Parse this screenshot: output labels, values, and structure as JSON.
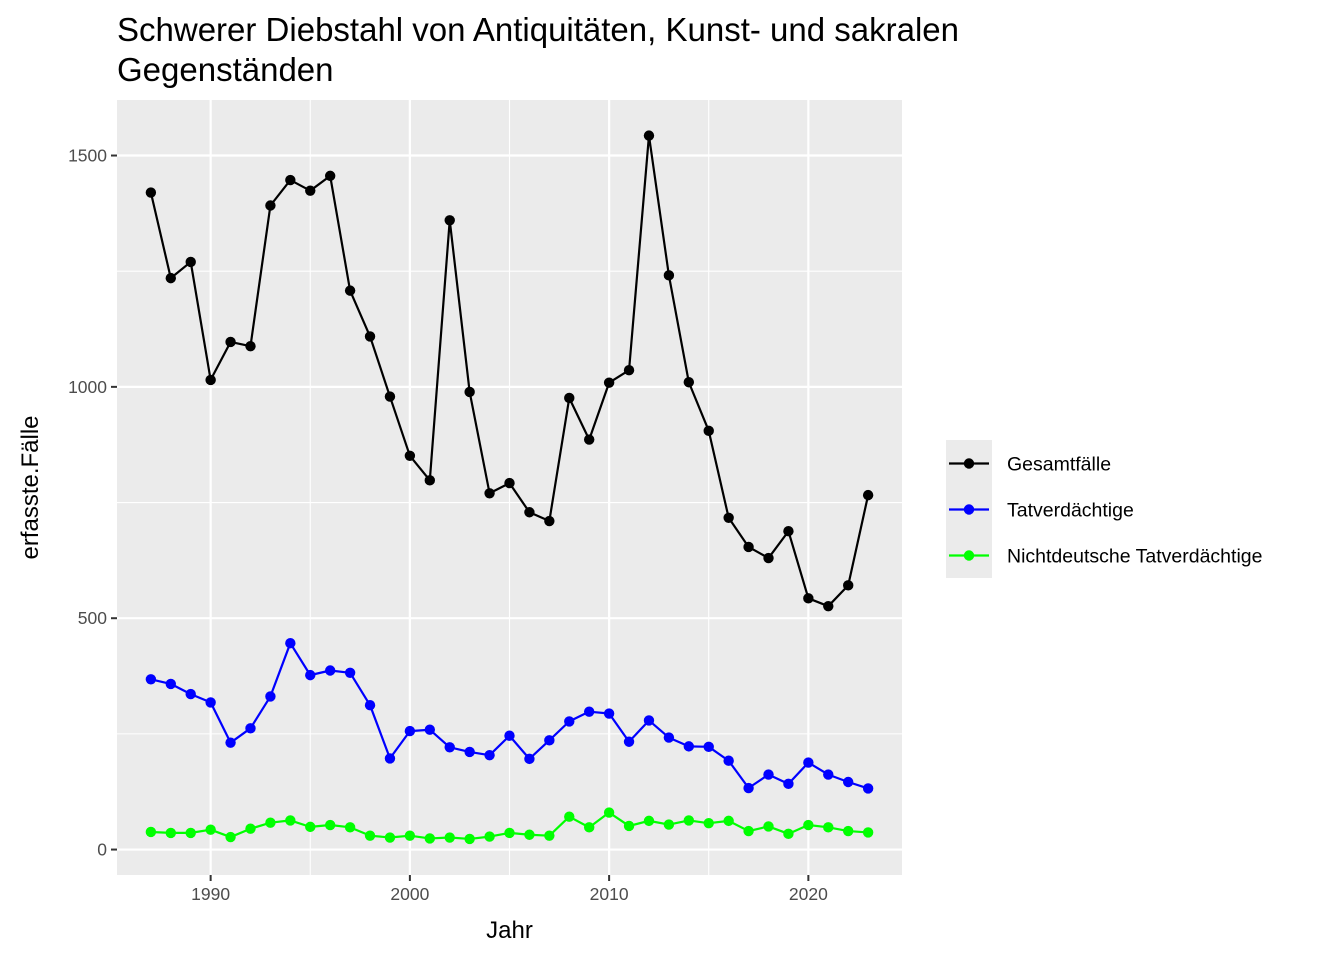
{
  "chart_data": {
    "type": "line",
    "title_line1": "Schwerer Diebstahl von Antiquitäten, Kunst- und sakralen",
    "title_line2": "Gegenständen",
    "xlabel": "Jahr",
    "ylabel": "erfasste.Fälle",
    "xlim": [
      1985.3,
      2024.7
    ],
    "ylim": [
      -55,
      1620
    ],
    "x_ticks": [
      1990,
      2000,
      2010,
      2020
    ],
    "y_ticks": [
      0,
      500,
      1000,
      1500
    ],
    "grid": true,
    "legend_position": "right",
    "x": [
      1987,
      1988,
      1989,
      1990,
      1991,
      1992,
      1993,
      1994,
      1995,
      1996,
      1997,
      1998,
      1999,
      2000,
      2001,
      2002,
      2003,
      2004,
      2005,
      2006,
      2007,
      2008,
      2009,
      2010,
      2011,
      2012,
      2013,
      2014,
      2015,
      2016,
      2017,
      2018,
      2019,
      2020,
      2021,
      2022,
      2023
    ],
    "series": [
      {
        "name": "Gesamtfälle",
        "color": "#000000",
        "values": [
          1420,
          1235,
          1270,
          1015,
          1097,
          1088,
          1392,
          1447,
          1424,
          1456,
          1208,
          1109,
          979,
          851,
          798,
          1360,
          989,
          770,
          792,
          729,
          710,
          976,
          886,
          1009,
          1036,
          1543,
          1241,
          1010,
          905,
          717,
          654,
          630,
          688,
          543,
          526,
          571,
          766
        ]
      },
      {
        "name": "Tatverdächtige",
        "color": "#0000ff",
        "values": [
          368,
          358,
          336,
          318,
          231,
          262,
          331,
          446,
          377,
          387,
          382,
          312,
          197,
          256,
          259,
          221,
          211,
          204,
          246,
          196,
          236,
          277,
          298,
          294,
          233,
          279,
          242,
          223,
          222,
          192,
          133,
          162,
          142,
          188,
          162,
          146,
          132
        ]
      },
      {
        "name": "Nichtdeutsche Tatverdächtige",
        "color": "#00ff00",
        "values": [
          38,
          36,
          36,
          43,
          27,
          45,
          58,
          63,
          49,
          53,
          48,
          30,
          26,
          30,
          24,
          26,
          23,
          28,
          36,
          32,
          30,
          71,
          48,
          80,
          51,
          62,
          54,
          63,
          57,
          62,
          40,
          50,
          34,
          53,
          48,
          40,
          37
        ]
      }
    ]
  }
}
